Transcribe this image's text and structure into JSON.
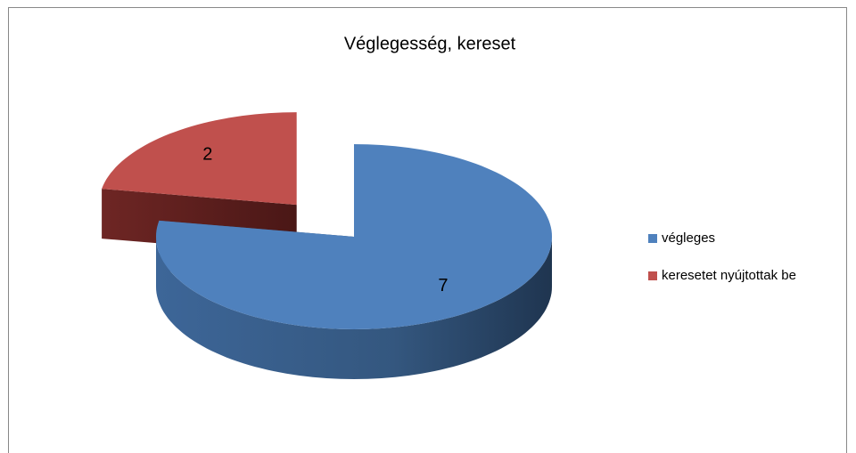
{
  "chart_data": {
    "type": "pie",
    "title": "Véglegesség, kereset",
    "categories": [
      "végleges",
      "keresetet nyújtottak be"
    ],
    "values": [
      7,
      2
    ],
    "value_labels": [
      "7",
      "2"
    ],
    "colors": [
      "#4f81bd",
      "#c0504d"
    ],
    "legend": "right"
  }
}
